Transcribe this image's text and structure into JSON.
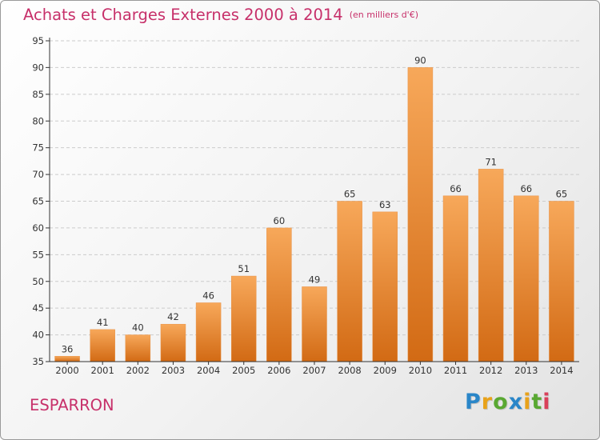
{
  "title": "Achats et Charges Externes 2000 à 2014",
  "title_unit": "(en milliers d'€)",
  "commune": "ESPARRON",
  "logo": {
    "text": "Proxiti",
    "letters": [
      {
        "char": "P",
        "color": "#2a86c8"
      },
      {
        "char": "r",
        "color": "#e8a21a"
      },
      {
        "char": "o",
        "color": "#59a832"
      },
      {
        "char": "x",
        "color": "#2a86c8"
      },
      {
        "char": "i",
        "color": "#e8a21a"
      },
      {
        "char": "t",
        "color": "#59a832"
      },
      {
        "char": "i",
        "color": "#d9405a"
      }
    ]
  },
  "colors": {
    "accent": "#c7306a",
    "bar_top": "#f7a85a",
    "bar_bottom": "#d26a14",
    "grid": "#cccccc",
    "axis": "#333333"
  },
  "chart_data": {
    "type": "bar",
    "categories": [
      "2000",
      "2001",
      "2002",
      "2003",
      "2004",
      "2005",
      "2006",
      "2007",
      "2008",
      "2009",
      "2010",
      "2011",
      "2012",
      "2013",
      "2014"
    ],
    "values": [
      36,
      41,
      40,
      42,
      46,
      51,
      60,
      49,
      65,
      63,
      90,
      66,
      71,
      66,
      65
    ],
    "ylim": [
      35,
      95
    ],
    "yticks": [
      35,
      40,
      45,
      50,
      55,
      60,
      65,
      70,
      75,
      80,
      85,
      90,
      95
    ],
    "grid": "horizontal dashed",
    "legend": "none"
  }
}
